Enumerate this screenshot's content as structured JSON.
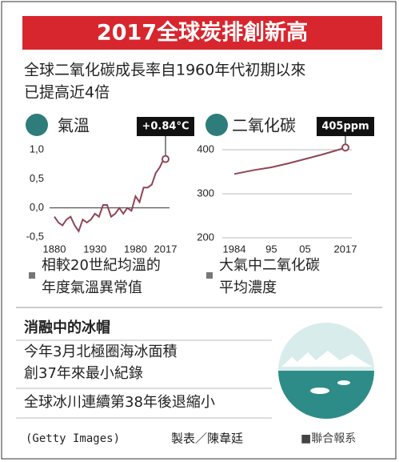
{
  "header": {
    "title": "2017全球炭排創新高",
    "subtitle": [
      "全球二氧化碳成長率自1960年代初期以來",
      "已提高近4倍"
    ]
  },
  "chart_data": [
    {
      "type": "line",
      "title": "氣溫",
      "annotation": "+0.84°C",
      "caption": [
        "相較20世紀均溫的",
        "年度氣溫異常值"
      ],
      "color": "#8e4456",
      "x": [
        1880,
        1885,
        1890,
        1895,
        1900,
        1905,
        1910,
        1915,
        1920,
        1925,
        1930,
        1935,
        1940,
        1945,
        1950,
        1955,
        1960,
        1965,
        1970,
        1975,
        1980,
        1985,
        1990,
        1995,
        2000,
        2005,
        2010,
        2015,
        2017
      ],
      "values": [
        -0.15,
        -0.25,
        -0.3,
        -0.2,
        -0.15,
        -0.3,
        -0.4,
        -0.2,
        -0.25,
        -0.2,
        -0.1,
        -0.15,
        0.05,
        0.05,
        -0.15,
        -0.1,
        0.0,
        -0.1,
        0.0,
        -0.05,
        0.2,
        0.1,
        0.35,
        0.35,
        0.4,
        0.6,
        0.7,
        0.85,
        0.84
      ],
      "xlim": [
        1880,
        2017
      ],
      "ylim": [
        -0.6,
        1.1
      ],
      "xticks": [
        1880,
        1930,
        1980,
        2017
      ],
      "yticks": [
        {
          "value": 1,
          "label": "1,0"
        },
        {
          "value": 0.5,
          "label": "0,5"
        },
        {
          "value": 0,
          "label": "0,0"
        },
        {
          "value": -0.5,
          "label": "-0,5"
        }
      ]
    },
    {
      "type": "line",
      "title": "二氧化碳",
      "annotation": "405ppm",
      "caption": [
        "大氣中二氧化碳",
        "平均濃度"
      ],
      "color": "#8e4456",
      "x": [
        1984,
        1990,
        1995,
        2000,
        2005,
        2010,
        2015,
        2017
      ],
      "values": [
        345,
        354,
        360,
        369,
        379,
        389,
        400,
        405
      ],
      "xlim": [
        1984,
        2017
      ],
      "ylim": [
        200,
        410
      ],
      "xticks": [
        1984,
        {
          "value": 1995,
          "label": "95"
        },
        {
          "value": 2005,
          "label": "05"
        },
        2017
      ],
      "yticks": [
        400,
        300,
        200
      ]
    }
  ],
  "ice": {
    "title": "消融中的冰帽",
    "lines": [
      "今年3月北極圈海冰面積",
      "創37年來最小紀錄"
    ],
    "note": "全球冰川連續第38年後退縮小"
  },
  "footer": {
    "credit": "(Getty Images)",
    "author": "製表／陳韋廷",
    "source": "■聯合報系"
  }
}
